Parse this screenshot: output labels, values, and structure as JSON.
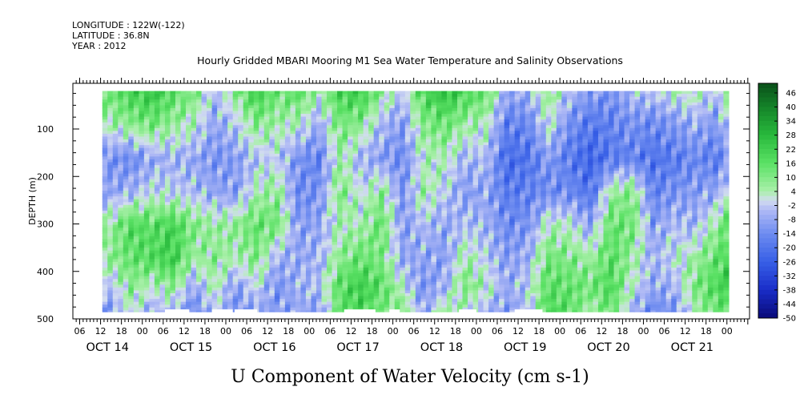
{
  "header": {
    "longitude": "LONGITUDE : 122W(-122)",
    "latitude": "LATITUDE : 36.8N",
    "year": "YEAR : 2012"
  },
  "chart_data": {
    "type": "heatmap",
    "title": "Hourly Gridded MBARI Mooring M1 Sea Water Temperature and Salinity Observations",
    "xlabel": "U Component of Water Velocity (cm s-1)",
    "ylabel": "DEPTH (m)",
    "ylim": [
      500,
      0
    ],
    "y_ticks": [
      100,
      200,
      300,
      400,
      500
    ],
    "y_tick_labels": [
      "100",
      "200",
      "300",
      "400",
      "500"
    ],
    "x_range_hours": [
      0,
      192
    ],
    "x_hour_ticks": [
      {
        "h": 0,
        "label": "06"
      },
      {
        "h": 6,
        "label": "12"
      },
      {
        "h": 12,
        "label": "18"
      },
      {
        "h": 18,
        "label": "00"
      },
      {
        "h": 24,
        "label": "06"
      },
      {
        "h": 30,
        "label": "12"
      },
      {
        "h": 36,
        "label": "18"
      },
      {
        "h": 42,
        "label": "00"
      },
      {
        "h": 48,
        "label": "06"
      },
      {
        "h": 54,
        "label": "12"
      },
      {
        "h": 60,
        "label": "18"
      },
      {
        "h": 66,
        "label": "00"
      },
      {
        "h": 72,
        "label": "06"
      },
      {
        "h": 78,
        "label": "12"
      },
      {
        "h": 84,
        "label": "18"
      },
      {
        "h": 90,
        "label": "00"
      },
      {
        "h": 96,
        "label": "06"
      },
      {
        "h": 102,
        "label": "12"
      },
      {
        "h": 108,
        "label": "18"
      },
      {
        "h": 114,
        "label": "00"
      },
      {
        "h": 120,
        "label": "06"
      },
      {
        "h": 126,
        "label": "12"
      },
      {
        "h": 132,
        "label": "18"
      },
      {
        "h": 138,
        "label": "00"
      },
      {
        "h": 144,
        "label": "06"
      },
      {
        "h": 150,
        "label": "12"
      },
      {
        "h": 156,
        "label": "18"
      },
      {
        "h": 162,
        "label": "00"
      },
      {
        "h": 168,
        "label": "06"
      },
      {
        "h": 174,
        "label": "12"
      },
      {
        "h": 180,
        "label": "18"
      },
      {
        "h": 186,
        "label": "00"
      }
    ],
    "x_date_labels": [
      {
        "h": 8,
        "label": "OCT 14"
      },
      {
        "h": 32,
        "label": "OCT 15"
      },
      {
        "h": 56,
        "label": "OCT 16"
      },
      {
        "h": 80,
        "label": "OCT 17"
      },
      {
        "h": 104,
        "label": "OCT 18"
      },
      {
        "h": 128,
        "label": "OCT 19"
      },
      {
        "h": 152,
        "label": "OCT 20"
      },
      {
        "h": 176,
        "label": "OCT 21"
      }
    ],
    "colorbar": {
      "min": -50,
      "max": 50,
      "labels": [
        "46",
        "40",
        "34",
        "28",
        "22",
        "16",
        "10",
        "4",
        "-2",
        "-8",
        "-14",
        "-20",
        "-26",
        "-32",
        "-38",
        "-44",
        "-50"
      ]
    },
    "data_columns": [
      {
        "h": 8,
        "profile": [
          12,
          6,
          -12,
          -8,
          6,
          8,
          -4,
          -10
        ]
      },
      {
        "h": 14,
        "profile": [
          20,
          10,
          -14,
          -6,
          18,
          14,
          8,
          2
        ]
      },
      {
        "h": 20,
        "profile": [
          24,
          14,
          -8,
          0,
          16,
          18,
          2,
          -6
        ]
      },
      {
        "h": 26,
        "profile": [
          16,
          8,
          -6,
          -2,
          20,
          22,
          8,
          -4
        ]
      },
      {
        "h": 32,
        "profile": [
          10,
          4,
          -8,
          -4,
          10,
          6,
          -8,
          -14
        ]
      },
      {
        "h": 38,
        "profile": [
          -4,
          -8,
          -12,
          -8,
          6,
          8,
          4,
          -2
        ]
      },
      {
        "h": 44,
        "profile": [
          8,
          -2,
          -10,
          -10,
          8,
          4,
          -10,
          -12
        ]
      },
      {
        "h": 50,
        "profile": [
          22,
          10,
          -4,
          4,
          14,
          10,
          0,
          -8
        ]
      },
      {
        "h": 56,
        "profile": [
          12,
          6,
          -2,
          8,
          12,
          -6,
          -12,
          -10
        ]
      },
      {
        "h": 62,
        "profile": [
          16,
          4,
          -12,
          -14,
          -10,
          -8,
          -6,
          -8
        ]
      },
      {
        "h": 68,
        "profile": [
          4,
          -6,
          -16,
          -12,
          -8,
          -6,
          -4,
          -10
        ]
      },
      {
        "h": 74,
        "profile": [
          20,
          12,
          6,
          10,
          4,
          8,
          16,
          14
        ]
      },
      {
        "h": 80,
        "profile": [
          22,
          10,
          -6,
          0,
          4,
          14,
          22,
          20
        ]
      },
      {
        "h": 86,
        "profile": [
          8,
          -4,
          -10,
          8,
          14,
          10,
          16,
          10
        ]
      },
      {
        "h": 92,
        "profile": [
          -2,
          -10,
          -14,
          -12,
          -10,
          -8,
          2,
          10
        ]
      },
      {
        "h": 98,
        "profile": [
          18,
          10,
          2,
          6,
          -4,
          -8,
          -12,
          -8
        ]
      },
      {
        "h": 104,
        "profile": [
          26,
          14,
          4,
          -2,
          -8,
          -10,
          -6,
          6
        ]
      },
      {
        "h": 110,
        "profile": [
          18,
          8,
          -6,
          -10,
          -4,
          6,
          10,
          2
        ]
      },
      {
        "h": 116,
        "profile": [
          14,
          4,
          -4,
          -8,
          -6,
          -2,
          4,
          -6
        ]
      },
      {
        "h": 122,
        "profile": [
          -8,
          -16,
          -22,
          -18,
          -14,
          -10,
          -8,
          -10
        ]
      },
      {
        "h": 128,
        "profile": [
          -6,
          -14,
          -20,
          -16,
          -12,
          -6,
          -2,
          -4
        ]
      },
      {
        "h": 134,
        "profile": [
          8,
          2,
          -10,
          -14,
          4,
          12,
          16,
          18
        ]
      },
      {
        "h": 140,
        "profile": [
          -4,
          -12,
          -18,
          -14,
          2,
          10,
          14,
          16
        ]
      },
      {
        "h": 146,
        "profile": [
          -10,
          -18,
          -24,
          -20,
          -8,
          6,
          12,
          4
        ]
      },
      {
        "h": 152,
        "profile": [
          -12,
          -16,
          -18,
          6,
          14,
          16,
          18,
          14
        ]
      },
      {
        "h": 158,
        "profile": [
          -4,
          -12,
          -16,
          10,
          12,
          6,
          2,
          -6
        ]
      },
      {
        "h": 164,
        "profile": [
          -2,
          -14,
          -20,
          -16,
          -10,
          -6,
          -8,
          -14
        ]
      },
      {
        "h": 170,
        "profile": [
          2,
          -10,
          -18,
          -12,
          -4,
          0,
          -6,
          -12
        ]
      },
      {
        "h": 176,
        "profile": [
          4,
          -6,
          -14,
          -10,
          -6,
          6,
          10,
          4
        ]
      },
      {
        "h": 182,
        "profile": [
          -4,
          -10,
          -18,
          -8,
          6,
          14,
          18,
          12
        ]
      },
      {
        "h": 186,
        "profile": [
          10,
          2,
          -10,
          4,
          16,
          20,
          22,
          16
        ]
      }
    ],
    "profile_depths": [
      20,
      80,
      160,
      230,
      300,
      370,
      430,
      480
    ],
    "data_bounds": {
      "h_start": 6.5,
      "h_end": 186.5,
      "depth_top": 20,
      "depth_bottom": 485
    },
    "missing_segments": [
      {
        "h0": 24.5,
        "h1": 31.5
      },
      {
        "h0": 38,
        "h1": 44
      },
      {
        "h0": 44.5,
        "h1": 51
      },
      {
        "h0": 76,
        "h1": 85
      },
      {
        "h0": 89,
        "h1": 92
      },
      {
        "h0": 109,
        "h1": 114
      },
      {
        "h0": 125,
        "h1": 133
      }
    ]
  }
}
